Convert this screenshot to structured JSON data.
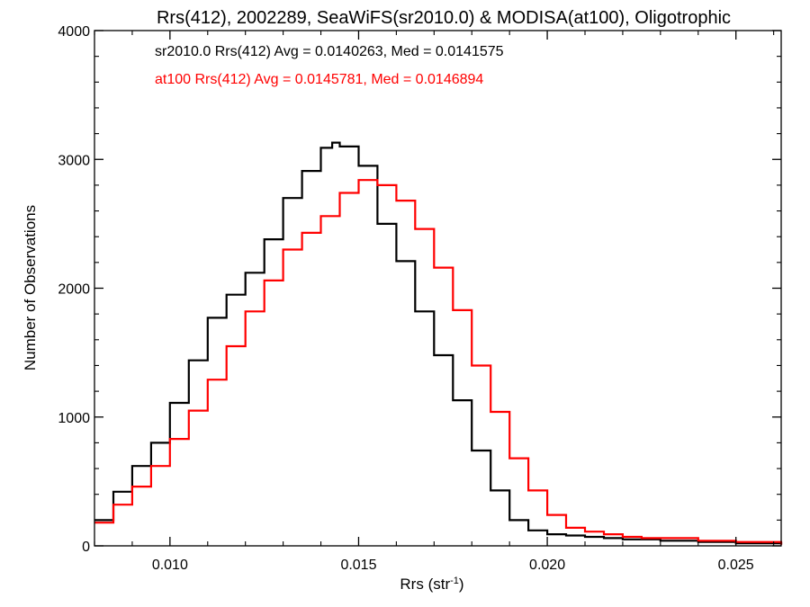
{
  "chart_data": {
    "type": "line",
    "title": "Rrs(412), 2002289, SeaWiFS(sr2010.0) & MODISA(at100), Oligotrophic",
    "xlabel": "Rrs (str",
    "xlabel_sup": "-1",
    "xlabel_close": ")",
    "ylabel": "Number of Observations",
    "xlim": [
      0.008,
      0.0262
    ],
    "ylim": [
      0,
      4000
    ],
    "xticks": [
      0.01,
      0.015,
      0.02,
      0.025
    ],
    "xtick_labels": [
      "0.010",
      "0.015",
      "0.020",
      "0.025"
    ],
    "yticks": [
      0,
      1000,
      2000,
      3000,
      4000
    ],
    "ytick_labels": [
      "0",
      "1000",
      "2000",
      "3000",
      "4000"
    ],
    "grid": false,
    "annotations": [
      {
        "text": "sr2010.0 Rrs(412) Avg = 0.0140263, Med = 0.0141575",
        "color": "#000000"
      },
      {
        "text": "at100 Rrs(412) Avg = 0.0145781, Med = 0.0146894",
        "color": "#ff0000"
      }
    ],
    "series": [
      {
        "color": "#000000",
        "x": [
          0.008,
          0.0085,
          0.009,
          0.0095,
          0.01,
          0.0105,
          0.011,
          0.0115,
          0.012,
          0.0125,
          0.013,
          0.0135,
          0.014,
          0.0143,
          0.0145,
          0.015,
          0.0155,
          0.016,
          0.0165,
          0.017,
          0.0175,
          0.018,
          0.0185,
          0.019,
          0.0195,
          0.02,
          0.0205,
          0.021,
          0.0215,
          0.022,
          0.023,
          0.024,
          0.025,
          0.0262
        ],
        "y": [
          200,
          420,
          620,
          800,
          1110,
          1440,
          1770,
          1950,
          2120,
          2380,
          2700,
          2910,
          3090,
          3130,
          3100,
          2950,
          2500,
          2210,
          1820,
          1480,
          1130,
          740,
          430,
          200,
          120,
          90,
          80,
          70,
          60,
          50,
          40,
          30,
          20,
          10
        ]
      },
      {
        "color": "#ff0000",
        "x": [
          0.008,
          0.0085,
          0.009,
          0.0095,
          0.01,
          0.0105,
          0.011,
          0.0115,
          0.012,
          0.0125,
          0.013,
          0.0135,
          0.014,
          0.0145,
          0.015,
          0.0155,
          0.016,
          0.0165,
          0.017,
          0.0175,
          0.018,
          0.0185,
          0.019,
          0.0195,
          0.02,
          0.0205,
          0.021,
          0.0215,
          0.022,
          0.0225,
          0.023,
          0.024,
          0.025,
          0.0262
        ],
        "y": [
          180,
          320,
          460,
          620,
          830,
          1050,
          1290,
          1550,
          1820,
          2060,
          2300,
          2430,
          2560,
          2740,
          2840,
          2800,
          2680,
          2460,
          2160,
          1830,
          1400,
          1040,
          680,
          430,
          240,
          140,
          110,
          90,
          70,
          60,
          60,
          40,
          30,
          10
        ]
      }
    ]
  }
}
